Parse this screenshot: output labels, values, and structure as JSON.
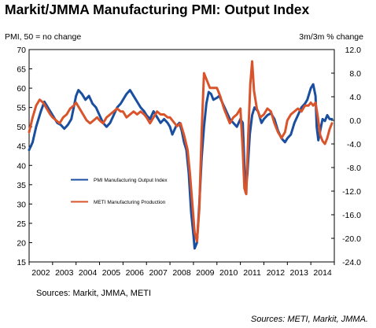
{
  "chart_data": {
    "type": "line",
    "title": "Markit/JMMA Manufacturing PMI: Output Index",
    "ylabel_left": "PMI, 50 = no change",
    "ylabel_right": "3m/3m % change",
    "source_left": "Sources: Markit, JMMA, METI",
    "source_right": "Sources: METI, Markit, JMMA.",
    "x_labels": [
      "2002",
      "2003",
      "2004",
      "2005",
      "2006",
      "2007",
      "2008",
      "2009",
      "2010",
      "2011",
      "2012",
      "2013",
      "2014"
    ],
    "xlim": [
      2002.0,
      2015.0
    ],
    "ylim_left": [
      15,
      70
    ],
    "ylim_right": [
      -24.0,
      12.0
    ],
    "yticks_left": [
      15,
      20,
      25,
      30,
      35,
      40,
      45,
      50,
      55,
      60,
      65,
      70
    ],
    "yticks_right": [
      "12.0",
      "8.0",
      "4.0",
      "0.0",
      "-4.0",
      "-8.0",
      "-12.0",
      "-16.0",
      "-20.0",
      "-24.0"
    ],
    "grid": false,
    "legend_position": "center-left",
    "series": [
      {
        "name": "PMI Manufacturing Output Index",
        "color": "#1a4fa0",
        "axis": "left",
        "points": [
          [
            2002.0,
            44
          ],
          [
            2002.15,
            46
          ],
          [
            2002.3,
            50
          ],
          [
            2002.5,
            54
          ],
          [
            2002.65,
            56.5
          ],
          [
            2002.8,
            55
          ],
          [
            2003.0,
            53
          ],
          [
            2003.2,
            51
          ],
          [
            2003.35,
            50.5
          ],
          [
            2003.5,
            49.5
          ],
          [
            2003.65,
            50.5
          ],
          [
            2003.8,
            52
          ],
          [
            2003.9,
            55
          ],
          [
            2004.0,
            58
          ],
          [
            2004.1,
            59.5
          ],
          [
            2004.25,
            58.5
          ],
          [
            2004.4,
            57
          ],
          [
            2004.55,
            58
          ],
          [
            2004.7,
            56
          ],
          [
            2004.85,
            55
          ],
          [
            2005.0,
            53
          ],
          [
            2005.15,
            51
          ],
          [
            2005.3,
            50
          ],
          [
            2005.45,
            51
          ],
          [
            2005.6,
            53
          ],
          [
            2005.75,
            55
          ],
          [
            2005.9,
            56
          ],
          [
            2006.0,
            57
          ],
          [
            2006.15,
            58.5
          ],
          [
            2006.3,
            59.5
          ],
          [
            2006.45,
            58
          ],
          [
            2006.6,
            56.5
          ],
          [
            2006.75,
            55
          ],
          [
            2006.9,
            54
          ],
          [
            2007.0,
            53
          ],
          [
            2007.15,
            52
          ],
          [
            2007.3,
            54
          ],
          [
            2007.45,
            52.5
          ],
          [
            2007.6,
            51
          ],
          [
            2007.75,
            52
          ],
          [
            2007.9,
            51
          ],
          [
            2008.0,
            50
          ],
          [
            2008.1,
            48
          ],
          [
            2008.25,
            50
          ],
          [
            2008.4,
            51
          ],
          [
            2008.5,
            49
          ],
          [
            2008.6,
            46
          ],
          [
            2008.7,
            44
          ],
          [
            2008.8,
            38
          ],
          [
            2008.9,
            28
          ],
          [
            2009.0,
            22
          ],
          [
            2009.05,
            18.5
          ],
          [
            2009.15,
            20
          ],
          [
            2009.25,
            30
          ],
          [
            2009.35,
            42
          ],
          [
            2009.45,
            50
          ],
          [
            2009.55,
            56
          ],
          [
            2009.65,
            59
          ],
          [
            2009.75,
            58.5
          ],
          [
            2009.85,
            57
          ],
          [
            2010.0,
            57.5
          ],
          [
            2010.1,
            58
          ],
          [
            2010.25,
            56
          ],
          [
            2010.4,
            54
          ],
          [
            2010.55,
            52
          ],
          [
            2010.7,
            51
          ],
          [
            2010.85,
            50
          ],
          [
            2011.0,
            52
          ],
          [
            2011.1,
            51
          ],
          [
            2011.17,
            40
          ],
          [
            2011.22,
            33
          ],
          [
            2011.3,
            38
          ],
          [
            2011.4,
            48
          ],
          [
            2011.5,
            53
          ],
          [
            2011.6,
            55
          ],
          [
            2011.75,
            54
          ],
          [
            2011.9,
            51
          ],
          [
            2012.0,
            52
          ],
          [
            2012.15,
            53
          ],
          [
            2012.3,
            53.5
          ],
          [
            2012.45,
            52
          ],
          [
            2012.6,
            49
          ],
          [
            2012.75,
            47
          ],
          [
            2012.9,
            46
          ],
          [
            2013.0,
            47
          ],
          [
            2013.15,
            48
          ],
          [
            2013.3,
            51
          ],
          [
            2013.45,
            53
          ],
          [
            2013.6,
            55
          ],
          [
            2013.75,
            56
          ],
          [
            2013.85,
            57
          ],
          [
            2014.0,
            60
          ],
          [
            2014.1,
            61
          ],
          [
            2014.2,
            58
          ],
          [
            2014.25,
            50
          ],
          [
            2014.32,
            46.5
          ],
          [
            2014.4,
            49
          ],
          [
            2014.5,
            52
          ],
          [
            2014.6,
            51.5
          ],
          [
            2014.7,
            53
          ],
          [
            2014.8,
            52
          ],
          [
            2014.9,
            52
          ]
        ]
      },
      {
        "name": "METI Manufacturing Production",
        "color": "#d9532b",
        "axis": "right",
        "points": [
          [
            2002.0,
            -2.0
          ],
          [
            2002.15,
            0.5
          ],
          [
            2002.3,
            2.5
          ],
          [
            2002.45,
            3.5
          ],
          [
            2002.6,
            3.0
          ],
          [
            2002.75,
            2.0
          ],
          [
            2002.9,
            1.0
          ],
          [
            2003.0,
            0.5
          ],
          [
            2003.15,
            0.0
          ],
          [
            2003.3,
            -0.5
          ],
          [
            2003.45,
            0.5
          ],
          [
            2003.6,
            1.0
          ],
          [
            2003.75,
            2.0
          ],
          [
            2003.9,
            2.5
          ],
          [
            2004.0,
            3.0
          ],
          [
            2004.15,
            2.0
          ],
          [
            2004.3,
            1.0
          ],
          [
            2004.45,
            0.0
          ],
          [
            2004.6,
            -0.5
          ],
          [
            2004.75,
            0.0
          ],
          [
            2004.9,
            0.5
          ],
          [
            2005.0,
            0.0
          ],
          [
            2005.15,
            -0.5
          ],
          [
            2005.3,
            0.5
          ],
          [
            2005.45,
            1.0
          ],
          [
            2005.6,
            1.5
          ],
          [
            2005.75,
            2.0
          ],
          [
            2005.9,
            1.5
          ],
          [
            2006.0,
            1.5
          ],
          [
            2006.15,
            0.5
          ],
          [
            2006.3,
            1.0
          ],
          [
            2006.45,
            1.5
          ],
          [
            2006.6,
            1.0
          ],
          [
            2006.75,
            1.5
          ],
          [
            2006.9,
            1.0
          ],
          [
            2007.0,
            0.5
          ],
          [
            2007.15,
            -0.5
          ],
          [
            2007.3,
            0.5
          ],
          [
            2007.45,
            1.5
          ],
          [
            2007.6,
            1.0
          ],
          [
            2007.75,
            1.0
          ],
          [
            2007.9,
            0.5
          ],
          [
            2008.0,
            0.5
          ],
          [
            2008.1,
            0.0
          ],
          [
            2008.2,
            -0.5
          ],
          [
            2008.3,
            -1.0
          ],
          [
            2008.45,
            -0.5
          ],
          [
            2008.6,
            -2.5
          ],
          [
            2008.75,
            -5.0
          ],
          [
            2008.85,
            -9.0
          ],
          [
            2008.95,
            -14.0
          ],
          [
            2009.05,
            -19.0
          ],
          [
            2009.15,
            -20.5
          ],
          [
            2009.25,
            -15.0
          ],
          [
            2009.35,
            -2.0
          ],
          [
            2009.45,
            8.0
          ],
          [
            2009.55,
            7.0
          ],
          [
            2009.7,
            5.5
          ],
          [
            2009.85,
            5.5
          ],
          [
            2010.0,
            5.5
          ],
          [
            2010.15,
            4.0
          ],
          [
            2010.3,
            2.0
          ],
          [
            2010.45,
            0.5
          ],
          [
            2010.55,
            -0.5
          ],
          [
            2010.7,
            0.5
          ],
          [
            2010.85,
            1.0
          ],
          [
            2011.0,
            2.0
          ],
          [
            2011.1,
            -5.0
          ],
          [
            2011.17,
            -11.5
          ],
          [
            2011.25,
            -12.5
          ],
          [
            2011.33,
            -3.0
          ],
          [
            2011.42,
            6.0
          ],
          [
            2011.5,
            10.0
          ],
          [
            2011.58,
            5.0
          ],
          [
            2011.7,
            2.0
          ],
          [
            2011.85,
            0.5
          ],
          [
            2012.0,
            1.0
          ],
          [
            2012.15,
            2.0
          ],
          [
            2012.3,
            1.5
          ],
          [
            2012.45,
            -0.5
          ],
          [
            2012.6,
            -2.0
          ],
          [
            2012.75,
            -3.0
          ],
          [
            2012.9,
            -2.0
          ],
          [
            2013.0,
            0.0
          ],
          [
            2013.15,
            1.0
          ],
          [
            2013.3,
            1.5
          ],
          [
            2013.45,
            2.0
          ],
          [
            2013.6,
            1.5
          ],
          [
            2013.75,
            2.5
          ],
          [
            2013.9,
            2.5
          ],
          [
            2014.0,
            3.0
          ],
          [
            2014.1,
            2.5
          ],
          [
            2014.2,
            3.0
          ],
          [
            2014.3,
            0.5
          ],
          [
            2014.4,
            -2.5
          ],
          [
            2014.5,
            -3.5
          ],
          [
            2014.6,
            -4.0
          ],
          [
            2014.7,
            -3.0
          ],
          [
            2014.8,
            -1.5
          ],
          [
            2014.9,
            -0.5
          ]
        ]
      }
    ]
  }
}
